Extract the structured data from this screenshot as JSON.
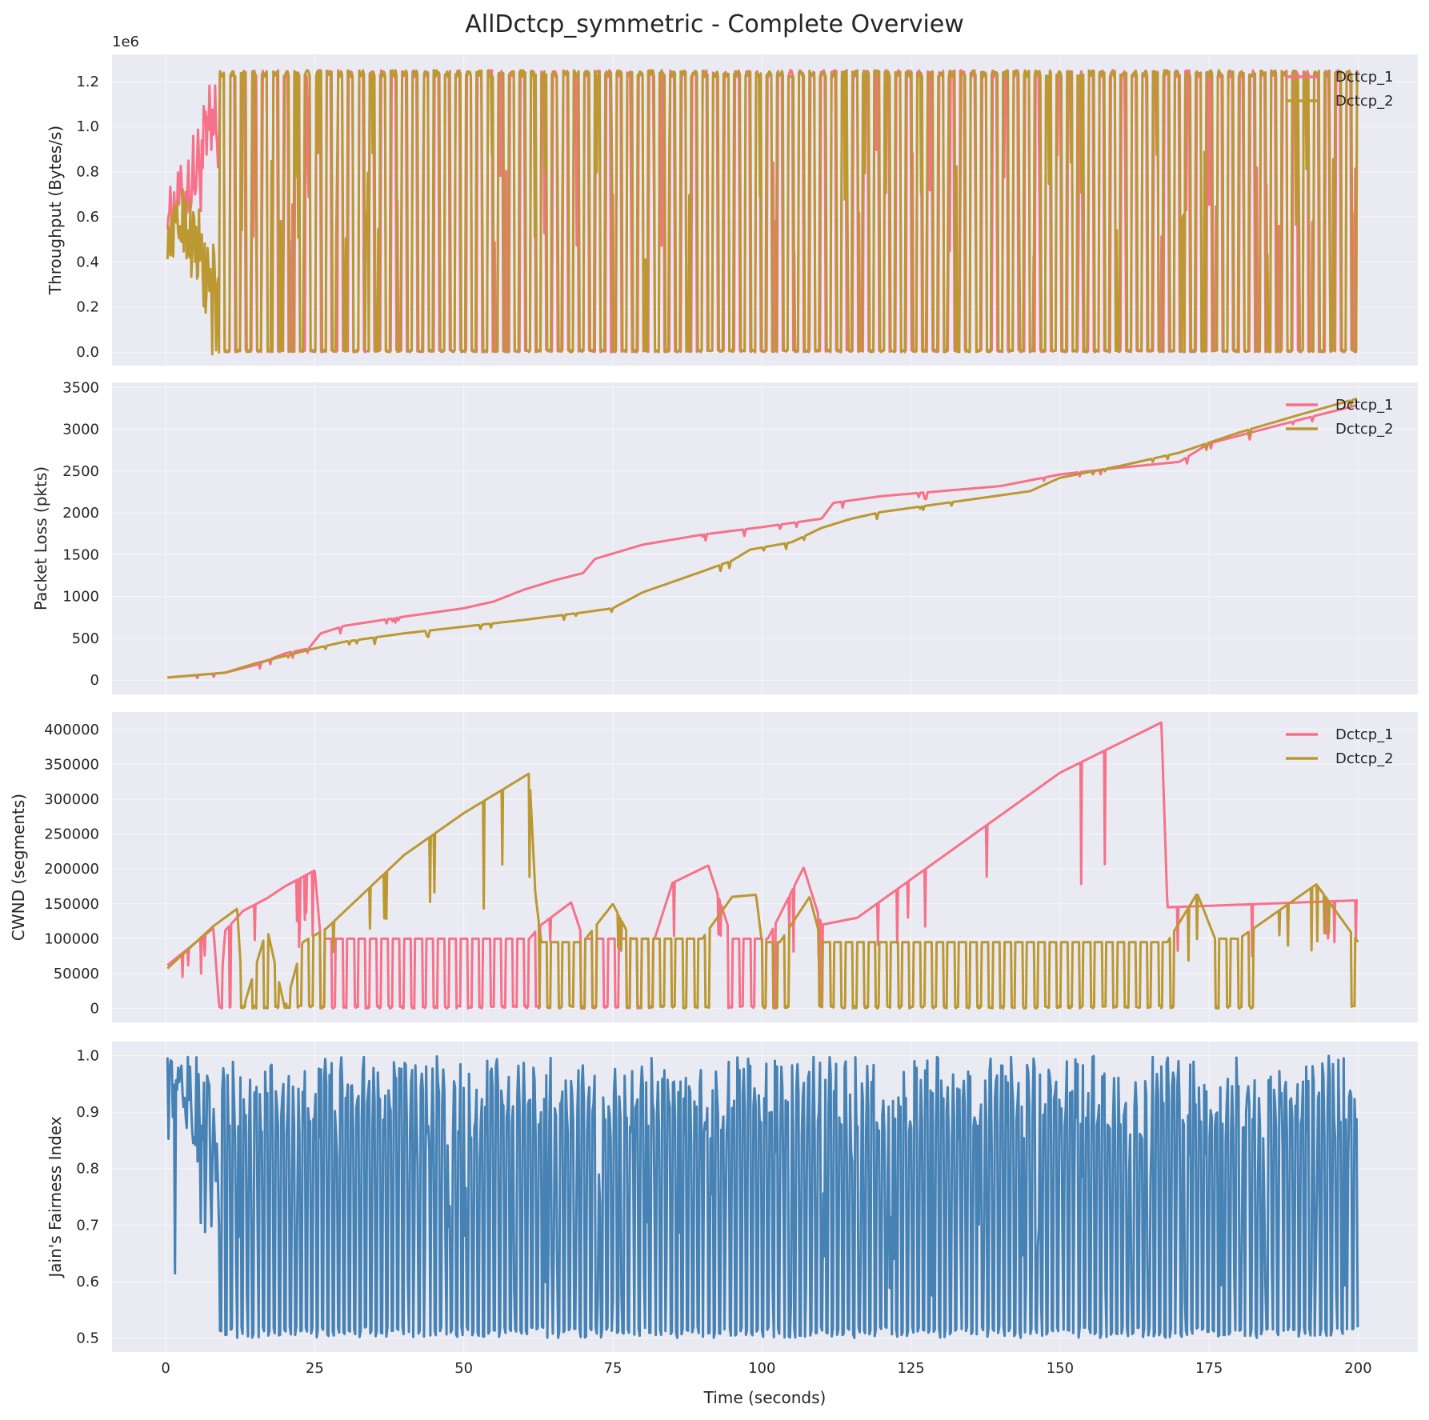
{
  "title": "AllDctcp_symmetric - Complete Overview",
  "xlabel": "Time (seconds)",
  "colors": {
    "background": "#eaeaf2",
    "grid": "#ffffff",
    "dctcp_1": "#f77189",
    "dctcp_2": "#bb9832",
    "fairness": "#4682b4"
  },
  "chart_data": [
    {
      "type": "line",
      "ylabel": "Throughput (Bytes/s)",
      "y_multiplier": "1e6",
      "xlim": [
        -9,
        210
      ],
      "ylim": [
        -0.06,
        1.32
      ],
      "xticks": [
        0,
        25,
        50,
        75,
        100,
        125,
        150,
        175,
        200
      ],
      "yticks": [
        0.0,
        0.2,
        0.4,
        0.6,
        0.8,
        1.0,
        1.2
      ],
      "ytick_labels": [
        "0.0",
        "0.2",
        "0.4",
        "0.6",
        "0.8",
        "1.0",
        "1.2"
      ],
      "grid": true,
      "legend": "top-right",
      "series": [
        {
          "name": "Dctcp_1",
          "color": "#f77189",
          "pattern": "throughput_a",
          "low": 0.0,
          "high": 1.25,
          "values": [
            [
              0,
              0.62
            ],
            [
              3,
              0.7
            ],
            [
              6,
              0.85
            ],
            [
              9,
              1.0
            ],
            [
              100,
              0.25
            ],
            [
              200,
              0.78
            ]
          ]
        },
        {
          "name": "Dctcp_2",
          "color": "#bb9832",
          "pattern": "throughput_b",
          "low": 0.0,
          "high": 1.25,
          "values": [
            [
              0,
              0.48
            ],
            [
              3,
              0.6
            ],
            [
              6,
              0.4
            ],
            [
              9,
              0.1
            ],
            [
              100,
              1.25
            ],
            [
              200,
              0.48
            ]
          ]
        }
      ]
    },
    {
      "type": "line",
      "ylabel": "Packet Loss (pkts)",
      "xlim": [
        -9,
        210
      ],
      "ylim": [
        -170,
        3560
      ],
      "xticks": [
        0,
        25,
        50,
        75,
        100,
        125,
        150,
        175,
        200
      ],
      "yticks": [
        0,
        500,
        1000,
        1500,
        2000,
        2500,
        3000,
        3500
      ],
      "ytick_labels": [
        "0",
        "500",
        "1000",
        "1500",
        "2000",
        "2500",
        "3000",
        "3500"
      ],
      "grid": true,
      "legend": "top-right",
      "series": [
        {
          "name": "Dctcp_1",
          "color": "#f77189",
          "pattern": "sawtooth_cumulative",
          "values": [
            [
              0,
              30
            ],
            [
              10,
              90
            ],
            [
              15,
              180
            ],
            [
              20,
              320
            ],
            [
              24,
              380
            ],
            [
              26,
              560
            ],
            [
              30,
              650
            ],
            [
              40,
              760
            ],
            [
              50,
              860
            ],
            [
              55,
              940
            ],
            [
              60,
              1080
            ],
            [
              65,
              1190
            ],
            [
              70,
              1280
            ],
            [
              72,
              1450
            ],
            [
              80,
              1620
            ],
            [
              90,
              1740
            ],
            [
              100,
              1830
            ],
            [
              110,
              1930
            ],
            [
              112,
              2120
            ],
            [
              120,
              2200
            ],
            [
              130,
              2260
            ],
            [
              140,
              2320
            ],
            [
              150,
              2460
            ],
            [
              160,
              2540
            ],
            [
              170,
              2610
            ],
            [
              175,
              2830
            ],
            [
              190,
              3110
            ],
            [
              200,
              3290
            ]
          ]
        },
        {
          "name": "Dctcp_2",
          "color": "#bb9832",
          "pattern": "sawtooth_cumulative",
          "values": [
            [
              0,
              30
            ],
            [
              10,
              90
            ],
            [
              15,
              200
            ],
            [
              20,
              290
            ],
            [
              25,
              380
            ],
            [
              30,
              460
            ],
            [
              40,
              560
            ],
            [
              50,
              640
            ],
            [
              60,
              720
            ],
            [
              70,
              810
            ],
            [
              75,
              860
            ],
            [
              80,
              1050
            ],
            [
              90,
              1300
            ],
            [
              95,
              1430
            ],
            [
              98,
              1560
            ],
            [
              105,
              1650
            ],
            [
              110,
              1820
            ],
            [
              115,
              1930
            ],
            [
              120,
              2010
            ],
            [
              130,
              2110
            ],
            [
              145,
              2260
            ],
            [
              150,
              2420
            ],
            [
              160,
              2560
            ],
            [
              170,
              2720
            ],
            [
              180,
              2960
            ],
            [
              190,
              3170
            ],
            [
              200,
              3370
            ]
          ]
        }
      ]
    },
    {
      "type": "line",
      "ylabel": "CWND (segments)",
      "xlim": [
        -9,
        210
      ],
      "ylim": [
        -20000,
        425000
      ],
      "xticks": [
        0,
        25,
        50,
        75,
        100,
        125,
        150,
        175,
        200
      ],
      "yticks": [
        0,
        50000,
        100000,
        150000,
        200000,
        250000,
        300000,
        350000,
        400000
      ],
      "ytick_labels": [
        "0",
        "50000",
        "100000",
        "150000",
        "200000",
        "250000",
        "300000",
        "350000",
        "400000"
      ],
      "grid": true,
      "legend": "top-right",
      "series": [
        {
          "name": "Dctcp_1",
          "color": "#f77189",
          "pattern": "cwnd_a",
          "values": [
            [
              0,
              60000
            ],
            [
              8,
              115000
            ],
            [
              9,
              0
            ],
            [
              10,
              112000
            ],
            [
              13,
              140000
            ],
            [
              17,
              158000
            ],
            [
              20,
              175000
            ],
            [
              25,
              198000
            ],
            [
              26,
              100000
            ],
            [
              61,
              100000
            ],
            [
              63,
              120000
            ],
            [
              68,
              152000
            ],
            [
              70,
              100000
            ],
            [
              82,
              100000
            ],
            [
              85,
              180000
            ],
            [
              91,
              205000
            ],
            [
              95,
              100000
            ],
            [
              101,
              100000
            ],
            [
              107,
              202000
            ],
            [
              110,
              120000
            ],
            [
              116,
              130000
            ],
            [
              150,
              338000
            ],
            [
              167,
              410000
            ],
            [
              168,
              145000
            ],
            [
              200,
              155000
            ]
          ]
        },
        {
          "name": "Dctcp_2",
          "color": "#bb9832",
          "pattern": "cwnd_b",
          "values": [
            [
              0,
              55000
            ],
            [
              8,
              118000
            ],
            [
              12,
              143000
            ],
            [
              13,
              0
            ],
            [
              17,
              115000
            ],
            [
              20,
              0
            ],
            [
              23,
              95000
            ],
            [
              27,
              115000
            ],
            [
              40,
              220000
            ],
            [
              50,
              280000
            ],
            [
              61,
              337000
            ],
            [
              62,
              165000
            ],
            [
              63,
              95000
            ],
            [
              70,
              95000
            ],
            [
              75,
              150000
            ],
            [
              78,
              100000
            ],
            [
              90,
              100000
            ],
            [
              95,
              160000
            ],
            [
              99,
              163000
            ],
            [
              100,
              95000
            ],
            [
              103,
              95000
            ],
            [
              108,
              160000
            ],
            [
              110,
              95000
            ],
            [
              168,
              95000
            ],
            [
              173,
              165000
            ],
            [
              176,
              100000
            ],
            [
              180,
              100000
            ],
            [
              193,
              178000
            ],
            [
              200,
              95000
            ]
          ]
        }
      ]
    },
    {
      "type": "line",
      "ylabel": "Jain's Fairness Index",
      "xlim": [
        -9,
        210
      ],
      "ylim": [
        0.475,
        1.025
      ],
      "xticks": [
        0,
        25,
        50,
        75,
        100,
        125,
        150,
        175,
        200
      ],
      "xtick_labels": [
        "0",
        "25",
        "50",
        "75",
        "100",
        "125",
        "150",
        "175",
        "200"
      ],
      "yticks": [
        0.5,
        0.6,
        0.7,
        0.8,
        0.9,
        1.0
      ],
      "ytick_labels": [
        "0.5",
        "0.6",
        "0.7",
        "0.8",
        "0.9",
        "1.0"
      ],
      "grid": true,
      "series": [
        {
          "color": "#4682b4",
          "pattern": "fairness",
          "low": 0.5,
          "high": 1.0,
          "values": [
            [
              0,
              0.99
            ],
            [
              3,
              0.98
            ],
            [
              5,
              0.9
            ],
            [
              7,
              0.8
            ],
            [
              9,
              0.5
            ],
            [
              200,
              0.95
            ]
          ]
        }
      ]
    }
  ]
}
